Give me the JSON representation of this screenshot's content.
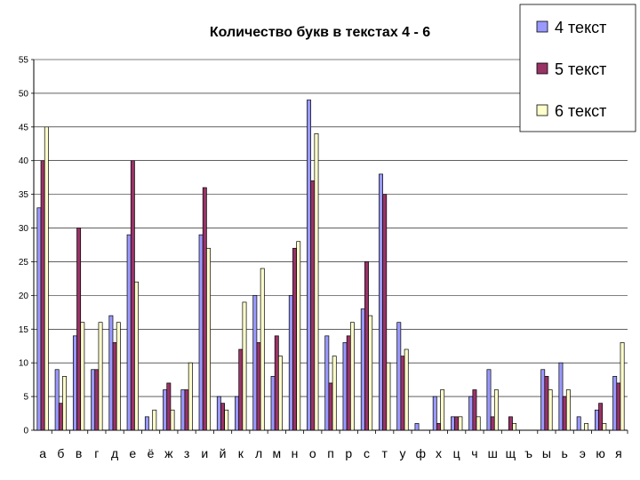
{
  "chart_data": {
    "type": "bar",
    "title": "Количество букв в текстах 4 - 6",
    "xlabel": "",
    "ylabel": "",
    "ylim": [
      0,
      55
    ],
    "yticks": [
      "0",
      "5",
      "10",
      "15",
      "20",
      "25",
      "30",
      "35",
      "40",
      "45",
      "50",
      "55"
    ],
    "grid": "horizontal",
    "legend_position": "top-right",
    "categories": [
      "а",
      "б",
      "в",
      "г",
      "д",
      "е",
      "ё",
      "ж",
      "з",
      "и",
      "й",
      "к",
      "л",
      "м",
      "н",
      "о",
      "п",
      "р",
      "с",
      "т",
      "у",
      "ф",
      "х",
      "ц",
      "ч",
      "ш",
      "щ",
      "ъ",
      "ы",
      "ь",
      "э",
      "ю",
      "я"
    ],
    "series": [
      {
        "name": "4 текст",
        "color": "#9999ff",
        "values": [
          33,
          9,
          14,
          9,
          17,
          29,
          2,
          6,
          6,
          29,
          5,
          5,
          20,
          8,
          20,
          49,
          14,
          13,
          18,
          38,
          16,
          1,
          5,
          2,
          5,
          9,
          0,
          0,
          9,
          10,
          2,
          3,
          8
        ]
      },
      {
        "name": "5 текст",
        "color": "#993366",
        "values": [
          40,
          4,
          30,
          9,
          13,
          40,
          0,
          7,
          6,
          36,
          4,
          12,
          13,
          14,
          27,
          37,
          7,
          14,
          25,
          35,
          11,
          0,
          1,
          2,
          6,
          2,
          2,
          0,
          8,
          5,
          0,
          4,
          7
        ]
      },
      {
        "name": "6 текст",
        "color": "#ffffcc",
        "values": [
          45,
          8,
          16,
          16,
          16,
          22,
          3,
          3,
          10,
          27,
          3,
          19,
          24,
          11,
          28,
          44,
          11,
          16,
          17,
          10,
          12,
          0,
          6,
          2,
          2,
          6,
          1,
          0,
          6,
          6,
          1,
          1,
          13
        ]
      }
    ]
  }
}
